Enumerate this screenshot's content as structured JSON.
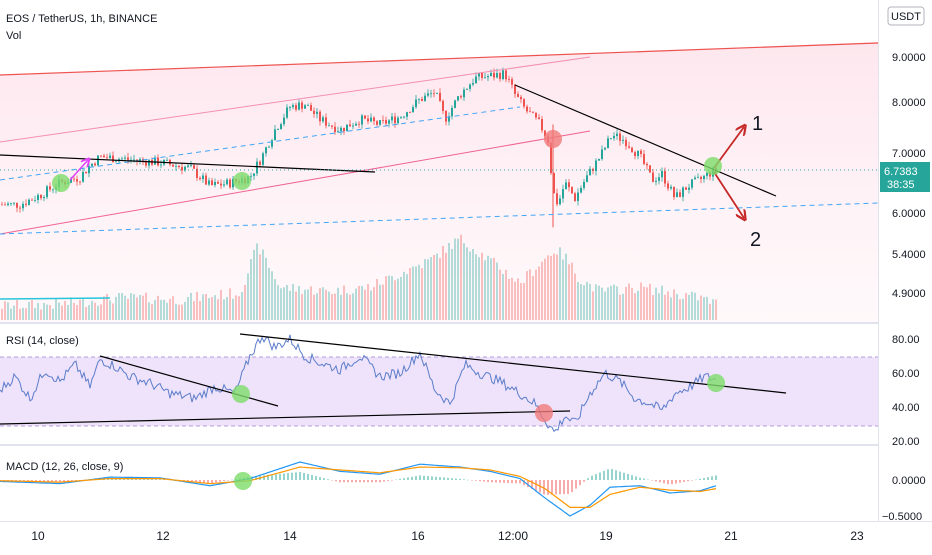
{
  "header": {
    "symbol_title": "EOS / TetherUS, 1h, BINANCE",
    "volume_label": "Vol",
    "currency_button": "USDT"
  },
  "price_tag": {
    "value": "6.7383",
    "countdown": "38:35"
  },
  "annotations": {
    "scenario_up": "1",
    "scenario_down": "2"
  },
  "colors": {
    "up": "#26a69a",
    "down": "#ef5350",
    "trendline": "#000000",
    "channel": "#f06292",
    "upper_resistance": "#ef5350",
    "support_dashed": "#2196f3",
    "rsi_line": "#5b7cc9",
    "rsi_band": "#e8dcfa",
    "macd_line": "#2196f3",
    "signal_line": "#ff9800",
    "marker_green": "#7ddc6a",
    "marker_red": "#f07a7a",
    "arrow": "#c62828",
    "magenta_arrow": "#e040fb"
  },
  "chart_data": [
    {
      "type": "candlestick",
      "title": "EOS / TetherUS, 1h, BINANCE",
      "y_ticks": [
        "9.0000",
        "8.0000",
        "7.0000",
        "6.0000",
        "5.4000",
        "4.9000"
      ],
      "y_scale": "log",
      "ylim": [
        4.6,
        9.6
      ],
      "last_price": 6.7383,
      "x_ticks": [
        "10",
        "12",
        "14",
        "16",
        "12:00",
        "19",
        "21",
        "23"
      ],
      "close_path": [
        [
          0,
          6.2
        ],
        [
          20,
          6.2
        ],
        [
          40,
          6.35
        ],
        [
          60,
          6.55
        ],
        [
          80,
          6.65
        ],
        [
          90,
          6.85
        ],
        [
          100,
          7.0
        ],
        [
          130,
          6.95
        ],
        [
          160,
          6.9
        ],
        [
          190,
          6.8
        ],
        [
          210,
          6.5
        ],
        [
          230,
          6.55
        ],
        [
          250,
          6.65
        ],
        [
          262,
          7.0
        ],
        [
          275,
          7.5
        ],
        [
          290,
          7.95
        ],
        [
          305,
          8.0
        ],
        [
          320,
          7.7
        ],
        [
          340,
          7.5
        ],
        [
          360,
          7.7
        ],
        [
          380,
          7.6
        ],
        [
          400,
          7.75
        ],
        [
          420,
          8.1
        ],
        [
          435,
          8.25
        ],
        [
          445,
          7.7
        ],
        [
          460,
          8.2
        ],
        [
          475,
          8.55
        ],
        [
          490,
          8.6
        ],
        [
          505,
          8.65
        ],
        [
          515,
          8.2
        ],
        [
          525,
          7.9
        ],
        [
          540,
          7.6
        ],
        [
          548,
          7.3
        ],
        [
          553,
          6.4
        ],
        [
          558,
          6.2
        ],
        [
          565,
          6.55
        ],
        [
          575,
          6.3
        ],
        [
          585,
          6.6
        ],
        [
          600,
          7.0
        ],
        [
          612,
          7.4
        ],
        [
          625,
          7.3
        ],
        [
          640,
          7.0
        ],
        [
          652,
          6.6
        ],
        [
          662,
          6.7
        ],
        [
          675,
          6.3
        ],
        [
          688,
          6.5
        ],
        [
          700,
          6.6
        ],
        [
          712,
          6.74
        ]
      ],
      "volume_path": [
        [
          0,
          4.72
        ],
        [
          60,
          4.74
        ],
        [
          120,
          4.82
        ],
        [
          180,
          4.8
        ],
        [
          240,
          4.88
        ],
        [
          258,
          5.5
        ],
        [
          280,
          4.95
        ],
        [
          330,
          4.9
        ],
        [
          370,
          4.95
        ],
        [
          430,
          5.3
        ],
        [
          460,
          5.6
        ],
        [
          500,
          5.2
        ],
        [
          520,
          5.0
        ],
        [
          555,
          5.45
        ],
        [
          565,
          5.35
        ],
        [
          580,
          5.05
        ],
        [
          600,
          4.9
        ],
        [
          640,
          4.95
        ],
        [
          700,
          4.82
        ],
        [
          716,
          4.75
        ]
      ]
    },
    {
      "type": "line",
      "title": "RSI (14, close)",
      "y_ticks": [
        "80.00",
        "60.00",
        "40.00",
        "20.00"
      ],
      "ylim": [
        15,
        85
      ],
      "band": [
        30,
        70
      ],
      "x_ticks": [
        "10",
        "12",
        "14",
        "16",
        "12:00",
        "19",
        "21",
        "23"
      ],
      "series": [
        {
          "values": [
            [
              0,
              50
            ],
            [
              15,
              58
            ],
            [
              30,
              45
            ],
            [
              45,
              62
            ],
            [
              60,
              55
            ],
            [
              75,
              65
            ],
            [
              90,
              52
            ],
            [
              100,
              68
            ],
            [
              115,
              64
            ],
            [
              130,
              58
            ],
            [
              150,
              54
            ],
            [
              170,
              48
            ],
            [
              195,
              45
            ],
            [
              215,
              52
            ],
            [
              235,
              48
            ],
            [
              250,
              70
            ],
            [
              262,
              82
            ],
            [
              275,
              75
            ],
            [
              290,
              80
            ],
            [
              305,
              70
            ],
            [
              320,
              66
            ],
            [
              340,
              62
            ],
            [
              360,
              70
            ],
            [
              380,
              58
            ],
            [
              400,
              60
            ],
            [
              420,
              72
            ],
            [
              435,
              50
            ],
            [
              450,
              42
            ],
            [
              465,
              65
            ],
            [
              480,
              60
            ],
            [
              500,
              55
            ],
            [
              520,
              48
            ],
            [
              535,
              42
            ],
            [
              548,
              30
            ],
            [
              555,
              25
            ],
            [
              565,
              35
            ],
            [
              575,
              30
            ],
            [
              590,
              48
            ],
            [
              605,
              60
            ],
            [
              620,
              55
            ],
            [
              635,
              45
            ],
            [
              650,
              42
            ],
            [
              662,
              38
            ],
            [
              675,
              48
            ],
            [
              690,
              52
            ],
            [
              705,
              58
            ],
            [
              716,
              56
            ]
          ]
        }
      ]
    },
    {
      "type": "macd",
      "title": "MACD (12, 26, close, 9)",
      "y_ticks": [
        "0.0000",
        "−0.5000"
      ],
      "ylim": [
        -0.6,
        0.35
      ],
      "x_ticks": [
        "10",
        "12",
        "14",
        "16",
        "12:00",
        "19",
        "21",
        "23"
      ],
      "series": [
        {
          "name": "MACD",
          "values": [
            [
              0,
              -0.02
            ],
            [
              60,
              -0.05
            ],
            [
              110,
              0.04
            ],
            [
              160,
              0.03
            ],
            [
              210,
              -0.08
            ],
            [
              250,
              0.02
            ],
            [
              300,
              0.25
            ],
            [
              340,
              0.12
            ],
            [
              380,
              0.08
            ],
            [
              420,
              0.22
            ],
            [
              460,
              0.18
            ],
            [
              490,
              0.12
            ],
            [
              520,
              0.02
            ],
            [
              545,
              -0.25
            ],
            [
              570,
              -0.5
            ],
            [
              590,
              -0.35
            ],
            [
              610,
              -0.1
            ],
            [
              640,
              -0.08
            ],
            [
              670,
              -0.18
            ],
            [
              700,
              -0.15
            ],
            [
              716,
              -0.08
            ]
          ]
        },
        {
          "name": "Signal",
          "values": [
            [
              0,
              -0.01
            ],
            [
              60,
              -0.03
            ],
            [
              110,
              0.02
            ],
            [
              160,
              0.02
            ],
            [
              210,
              -0.05
            ],
            [
              250,
              -0.01
            ],
            [
              300,
              0.18
            ],
            [
              340,
              0.14
            ],
            [
              380,
              0.1
            ],
            [
              420,
              0.18
            ],
            [
              460,
              0.17
            ],
            [
              490,
              0.14
            ],
            [
              520,
              0.05
            ],
            [
              545,
              -0.12
            ],
            [
              570,
              -0.38
            ],
            [
              590,
              -0.38
            ],
            [
              610,
              -0.2
            ],
            [
              640,
              -0.1
            ],
            [
              670,
              -0.14
            ],
            [
              700,
              -0.16
            ],
            [
              716,
              -0.12
            ]
          ]
        }
      ]
    }
  ]
}
